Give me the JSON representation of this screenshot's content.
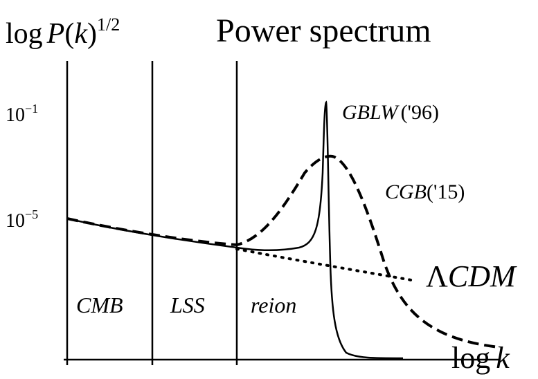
{
  "title": "Power spectrum",
  "y_label": {
    "prefix": "log",
    "symbol": "P",
    "open": "(",
    "var": "k",
    "close": ")",
    "exponent": "1/2"
  },
  "y_ticks": [
    {
      "base": "10",
      "exponent": "−1"
    },
    {
      "base": "10",
      "exponent": "−5"
    }
  ],
  "x_label": {
    "prefix": "log",
    "var": "k"
  },
  "regions": [
    "CMB",
    "LSS",
    "reion"
  ],
  "curves": {
    "gblw": {
      "name": "GBLW",
      "year": "('96)"
    },
    "cgb": {
      "name": "CGB",
      "year": "('15)"
    },
    "lcdm": {
      "symbol": "Λ",
      "name": "CDM"
    }
  }
}
